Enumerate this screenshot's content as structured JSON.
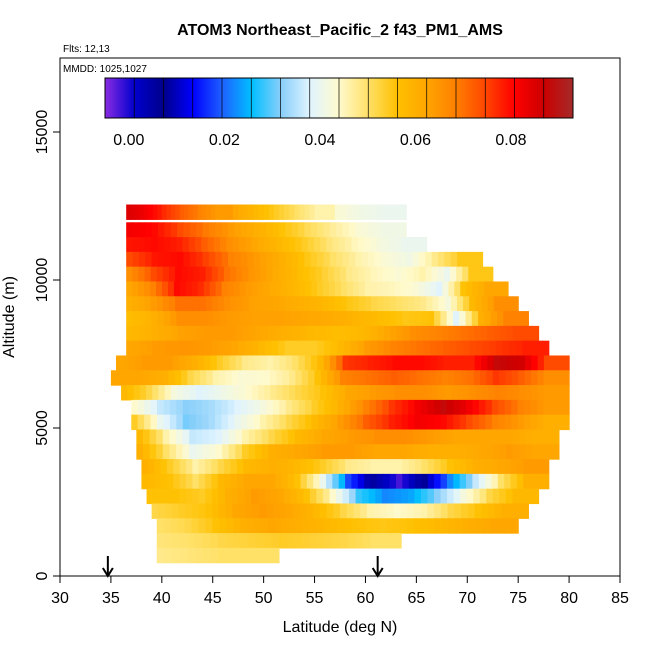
{
  "chart_data": {
    "type": "heatmap",
    "title": "ATOM3 Northeast_Pacific_2 f43_PM1_AMS",
    "flights_text": "Flts: 12,13",
    "dates_text": "MMDD: 1025,1027",
    "xlabel": "Latitude (deg N)",
    "ylabel": "Altitude (m)",
    "xlim": [
      30,
      85
    ],
    "ylim": [
      0,
      17500
    ],
    "x_ticks": [
      "30",
      "35",
      "40",
      "45",
      "50",
      "55",
      "60",
      "65",
      "70",
      "75",
      "80",
      "85"
    ],
    "y_ticks": [
      "0",
      "5000",
      "10000",
      "15000"
    ],
    "colorbar": {
      "range": [
        -0.005,
        0.093
      ],
      "ticks": [
        "0.00",
        "0.02",
        "0.04",
        "0.06",
        "0.08"
      ],
      "colors": [
        "#8a2be2",
        "#0000cd",
        "#00008b",
        "#0000ff",
        "#1e60ff",
        "#00bfff",
        "#87cefa",
        "#e0f4ff",
        "#fffacd",
        "#ffe066",
        "#ffc000",
        "#ffa500",
        "#ff7f00",
        "#ff4500",
        "#ff0000",
        "#cc0000",
        "#a52a2a"
      ]
    },
    "markers": [
      34.7,
      61.2
    ],
    "bands": [
      {
        "alt": 12300,
        "lat": [
          36.5,
          47
        ],
        "v": [
          0.085,
          0.082,
          0.077,
          0.072,
          0.068,
          0.064
        ]
      },
      {
        "alt": 12300,
        "lat": [
          47,
          57
        ],
        "v": [
          0.062,
          0.058,
          0.054,
          0.05,
          0.046
        ]
      },
      {
        "alt": 12300,
        "lat": [
          57,
          64
        ],
        "v": [
          0.043,
          0.041,
          0.04
        ]
      },
      {
        "alt": 11700,
        "lat": [
          36.5,
          64
        ],
        "v": [
          0.082,
          0.08,
          0.074,
          0.069,
          0.064,
          0.06,
          0.056,
          0.051,
          0.047,
          0.043,
          0.041
        ]
      },
      {
        "alt": 11200,
        "lat": [
          36.5,
          66
        ],
        "v": [
          0.079,
          0.08,
          0.078,
          0.072,
          0.066,
          0.062,
          0.058,
          0.054,
          0.049,
          0.045,
          0.042,
          0.04
        ]
      },
      {
        "alt": 10700,
        "lat": [
          36.5,
          71.5
        ],
        "v": [
          0.074,
          0.079,
          0.08,
          0.075,
          0.068,
          0.064,
          0.06,
          0.055,
          0.05,
          0.046,
          0.043,
          0.041,
          0.048,
          0.055
        ]
      },
      {
        "alt": 10200,
        "lat": [
          36.5,
          72.5
        ],
        "v": [
          0.066,
          0.074,
          0.08,
          0.078,
          0.07,
          0.065,
          0.061,
          0.057,
          0.053,
          0.048,
          0.045,
          0.043,
          0.046,
          0.04,
          0.055
        ]
      },
      {
        "alt": 9700,
        "lat": [
          36.5,
          74
        ],
        "v": [
          0.062,
          0.068,
          0.08,
          0.077,
          0.068,
          0.064,
          0.061,
          0.058,
          0.054,
          0.05,
          0.046,
          0.045,
          0.043,
          0.038,
          0.056,
          0.062
        ]
      },
      {
        "alt": 9200,
        "lat": [
          36.5,
          75
        ],
        "v": [
          0.06,
          0.064,
          0.07,
          0.07,
          0.066,
          0.063,
          0.062,
          0.06,
          0.058,
          0.055,
          0.052,
          0.05,
          0.048,
          0.042,
          0.058,
          0.066
        ]
      },
      {
        "alt": 8700,
        "lat": [
          36.5,
          76
        ],
        "v": [
          0.057,
          0.06,
          0.066,
          0.066,
          0.064,
          0.063,
          0.063,
          0.062,
          0.061,
          0.059,
          0.057,
          0.055,
          0.056,
          0.038,
          0.06,
          0.068
        ]
      },
      {
        "alt": 8200,
        "lat": [
          36.5,
          77
        ],
        "v": [
          0.058,
          0.06,
          0.063,
          0.064,
          0.064,
          0.062,
          0.06,
          0.058,
          0.057,
          0.058,
          0.062,
          0.066,
          0.068,
          0.07,
          0.072,
          0.074
        ]
      },
      {
        "alt": 7700,
        "lat": [
          36.5,
          78
        ],
        "v": [
          0.062,
          0.064,
          0.065,
          0.064,
          0.062,
          0.058,
          0.054,
          0.054,
          0.058,
          0.064,
          0.068,
          0.07,
          0.072,
          0.074,
          0.076,
          0.078
        ]
      },
      {
        "alt": 7200,
        "lat": [
          35.5,
          80
        ],
        "v": [
          0.062,
          0.064,
          0.064,
          0.06,
          0.054,
          0.048,
          0.046,
          0.05,
          0.058,
          0.076,
          0.078,
          0.08,
          0.08,
          0.078,
          0.078,
          0.088,
          0.086,
          0.074
        ]
      },
      {
        "alt": 6700,
        "lat": [
          35,
          80
        ],
        "v": [
          0.062,
          0.062,
          0.06,
          0.052,
          0.046,
          0.043,
          0.044,
          0.048,
          0.056,
          0.068,
          0.07,
          0.072,
          0.07,
          0.068,
          0.07,
          0.076,
          0.072,
          0.066
        ]
      },
      {
        "alt": 6200,
        "lat": [
          36,
          80
        ],
        "v": [
          0.058,
          0.052,
          0.042,
          0.038,
          0.041,
          0.044,
          0.048,
          0.052,
          0.056,
          0.062,
          0.064,
          0.066,
          0.066,
          0.064,
          0.066,
          0.068,
          0.066,
          0.064
        ]
      },
      {
        "alt": 5700,
        "lat": [
          37,
          80
        ],
        "v": [
          0.044,
          0.036,
          0.032,
          0.034,
          0.038,
          0.042,
          0.048,
          0.054,
          0.06,
          0.068,
          0.076,
          0.082,
          0.088,
          0.082,
          0.074,
          0.068,
          0.064
        ]
      },
      {
        "alt": 5200,
        "lat": [
          37,
          80
        ],
        "v": [
          0.054,
          0.04,
          0.031,
          0.034,
          0.04,
          0.046,
          0.052,
          0.058,
          0.064,
          0.072,
          0.078,
          0.082,
          0.08,
          0.074,
          0.068,
          0.064,
          0.06
        ]
      },
      {
        "alt": 4700,
        "lat": [
          37.5,
          79
        ],
        "v": [
          0.058,
          0.046,
          0.036,
          0.038,
          0.046,
          0.052,
          0.058,
          0.062,
          0.064,
          0.066,
          0.066,
          0.064,
          0.062,
          0.062,
          0.062,
          0.06
        ]
      },
      {
        "alt": 4200,
        "lat": [
          37.5,
          79
        ],
        "v": [
          0.06,
          0.05,
          0.04,
          0.044,
          0.054,
          0.06,
          0.062,
          0.064,
          0.064,
          0.062,
          0.062,
          0.06,
          0.06,
          0.062,
          0.064,
          0.062
        ]
      },
      {
        "alt": 3700,
        "lat": [
          38,
          78
        ],
        "v": [
          0.06,
          0.054,
          0.046,
          0.052,
          0.058,
          0.06,
          0.058,
          0.054,
          0.048,
          0.046,
          0.046,
          0.05,
          0.056,
          0.06,
          0.062,
          0.064
        ]
      },
      {
        "alt": 3200,
        "lat": [
          38,
          78
        ],
        "v": [
          0.058,
          0.056,
          0.05,
          0.058,
          0.062,
          0.062,
          0.056,
          0.04,
          0.018,
          0.005,
          -0.002,
          0.008,
          0.022,
          0.036,
          0.05,
          0.06
        ]
      },
      {
        "alt": 2700,
        "lat": [
          38.5,
          77
        ],
        "v": [
          0.056,
          0.056,
          0.054,
          0.06,
          0.064,
          0.062,
          0.056,
          0.044,
          0.028,
          0.022,
          0.024,
          0.032,
          0.042,
          0.052,
          0.058
        ]
      },
      {
        "alt": 2200,
        "lat": [
          39,
          76
        ],
        "v": [
          0.052,
          0.054,
          0.056,
          0.062,
          0.064,
          0.062,
          0.058,
          0.052,
          0.046,
          0.044,
          0.046,
          0.052,
          0.056,
          0.06
        ]
      },
      {
        "alt": 1700,
        "lat": [
          39.5,
          75
        ],
        "v": [
          0.05,
          0.052,
          0.056,
          0.06,
          0.062,
          0.06,
          0.058,
          0.056,
          0.055,
          0.056,
          0.058,
          0.06,
          0.062
        ]
      },
      {
        "alt": 1200,
        "lat": [
          39.5,
          63.5
        ],
        "v": [
          0.049,
          0.05,
          0.052,
          0.053,
          0.054,
          0.053,
          0.052,
          0.05
        ]
      },
      {
        "alt": 700,
        "lat": [
          39.5,
          51.5
        ],
        "v": [
          0.048,
          0.049,
          0.05,
          0.05
        ]
      }
    ]
  }
}
